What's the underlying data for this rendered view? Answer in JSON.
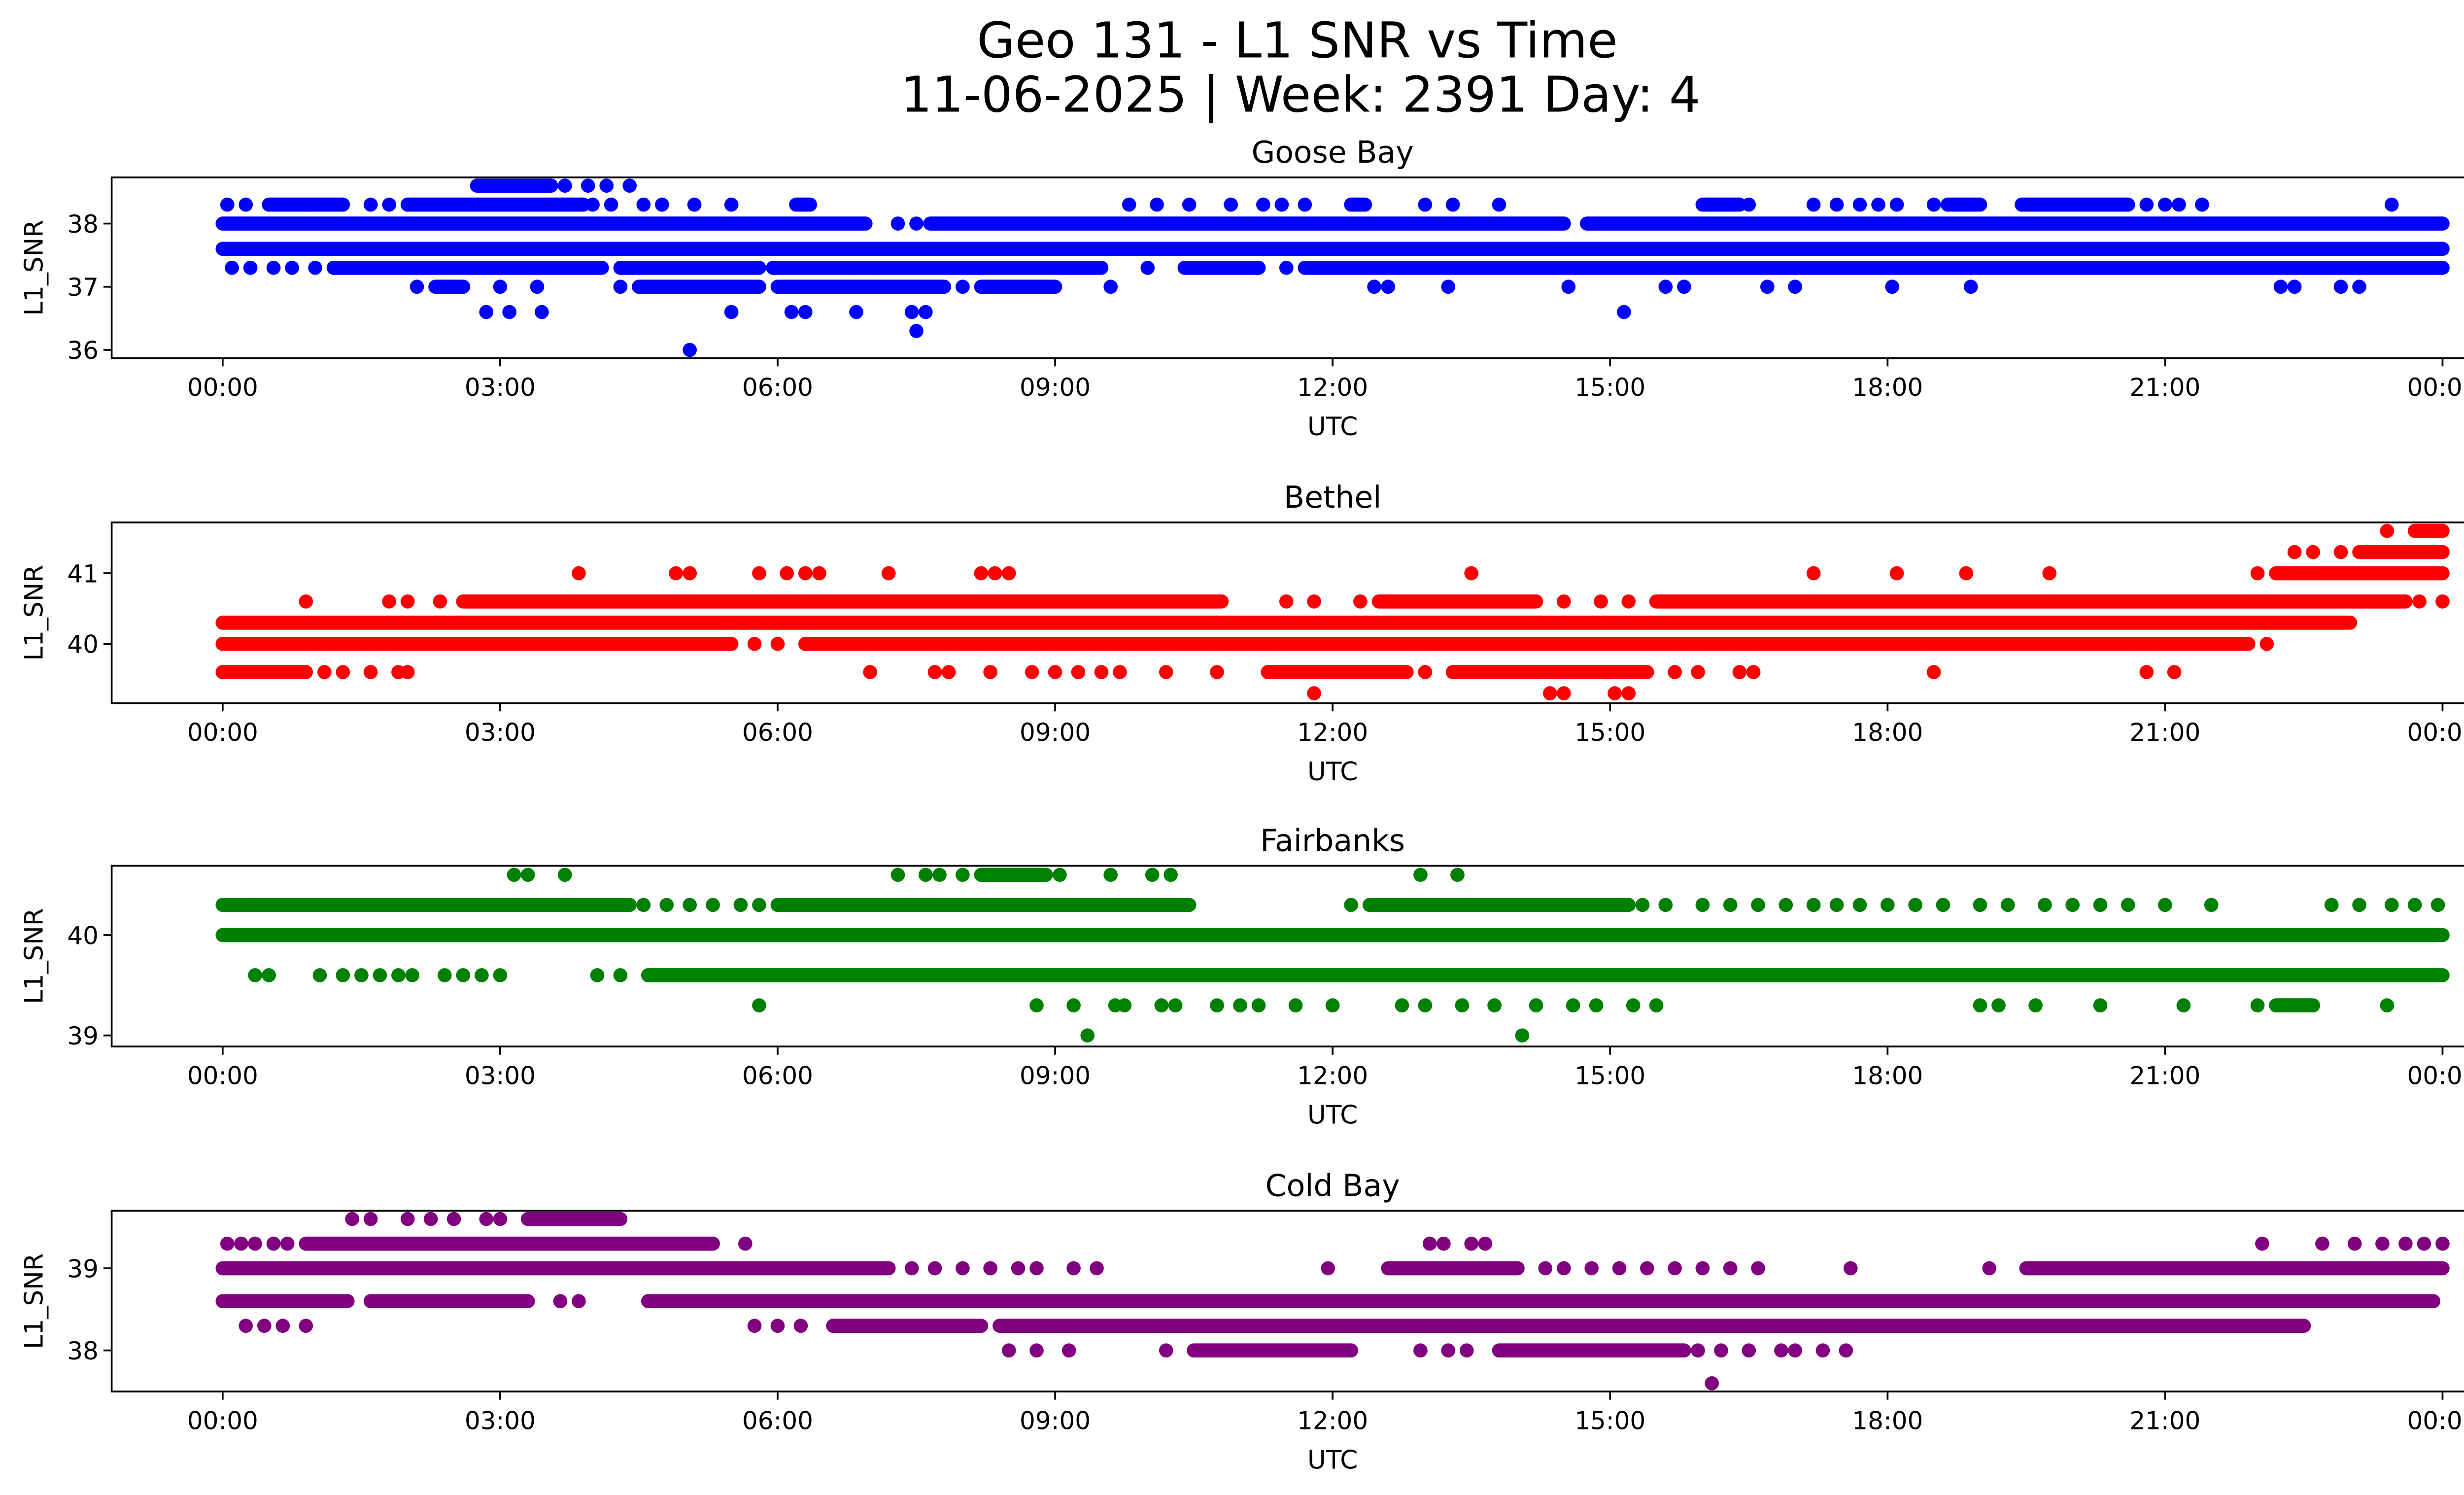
{
  "chart_data": {
    "type": "scatter",
    "title": "Geo 131 - L1 SNR vs Time",
    "subtitle": "11-06-2025 | Week: 2391 Day: 4",
    "x_unit": "hours UTC",
    "xlim": [
      -1.2,
      25.2
    ],
    "x_ticks": [
      0,
      3,
      6,
      9,
      12,
      15,
      18,
      21,
      24
    ],
    "x_tick_labels": [
      "00:00",
      "03:00",
      "06:00",
      "09:00",
      "12:00",
      "15:00",
      "18:00",
      "21:00",
      "00:00"
    ],
    "grid": false,
    "legend": "none",
    "panels": [
      {
        "name": "Goose Bay",
        "color": "#0000ff",
        "xlabel": "UTC",
        "ylabel": "L1_SNR",
        "ylim": [
          35.87,
          38.73
        ],
        "y_ticks": [
          36,
          37,
          38
        ],
        "y_tick_labels": [
          "36",
          "37",
          "38"
        ],
        "levels": [
          {
            "y": 38.6,
            "runs": [
              [
                2.75,
                3.55
              ]
            ],
            "points": [
              3.7,
              3.95,
              4.15,
              4.4
            ]
          },
          {
            "y": 38.3,
            "runs": [
              [
                0.5,
                1.3
              ],
              [
                2.0,
                3.9
              ],
              [
                6.2,
                6.35
              ],
              [
                12.2,
                12.35
              ],
              [
                16.0,
                16.4
              ],
              [
                18.65,
                19.0
              ],
              [
                19.45,
                20.6
              ]
            ],
            "points": [
              0.05,
              0.25,
              0.95,
              1.6,
              1.8,
              2.0,
              4.0,
              4.2,
              4.55,
              4.75,
              5.1,
              5.5,
              9.8,
              10.1,
              10.45,
              10.9,
              11.25,
              11.45,
              11.7,
              13.0,
              13.3,
              13.8,
              16.5,
              17.2,
              17.45,
              17.7,
              17.9,
              18.1,
              18.5,
              20.8,
              21.0,
              21.15,
              21.4,
              23.45
            ]
          },
          {
            "y": 38.0,
            "runs": [
              [
                0.0,
                6.95
              ],
              [
                7.65,
                14.5
              ],
              [
                14.75,
                24.0
              ]
            ],
            "points": [
              7.3,
              7.5
            ]
          },
          {
            "y": 37.6,
            "runs": [
              [
                0.0,
                24.0
              ]
            ],
            "points": []
          },
          {
            "y": 37.3,
            "runs": [
              [
                1.2,
                4.1
              ],
              [
                4.3,
                5.8
              ],
              [
                5.95,
                9.5
              ],
              [
                10.4,
                11.2
              ],
              [
                11.7,
                24.0
              ]
            ],
            "points": [
              0.1,
              0.3,
              0.55,
              0.75,
              1.0,
              10.0,
              11.5
            ]
          },
          {
            "y": 37.0,
            "runs": [
              [
                2.3,
                2.6
              ],
              [
                4.5,
                5.8
              ],
              [
                6.0,
                7.8
              ],
              [
                8.2,
                9.0
              ]
            ],
            "points": [
              2.1,
              3.0,
              3.4,
              4.3,
              6.2,
              6.45,
              6.8,
              7.1,
              7.3,
              8.0,
              9.6,
              12.45,
              12.6,
              13.25,
              14.55,
              15.6,
              15.8,
              16.7,
              17.0,
              18.05,
              18.9,
              22.25,
              22.4,
              22.9,
              23.1
            ]
          },
          {
            "y": 36.6,
            "runs": [],
            "points": [
              2.85,
              3.1,
              3.45,
              5.5,
              6.15,
              6.3,
              6.85,
              7.45,
              7.6,
              15.15
            ]
          },
          {
            "y": 36.3,
            "runs": [],
            "points": [
              7.5
            ]
          },
          {
            "y": 36.0,
            "runs": [],
            "points": [
              5.05
            ]
          }
        ]
      },
      {
        "name": "Bethel",
        "color": "#ff0000",
        "xlabel": "UTC",
        "ylabel": "L1_SNR",
        "ylim": [
          39.16,
          41.72
        ],
        "y_ticks": [
          40,
          41
        ],
        "y_tick_labels": [
          "40",
          "41"
        ],
        "levels": [
          {
            "y": 41.6,
            "runs": [
              [
                23.7,
                24.0
              ]
            ],
            "points": [
              23.4
            ]
          },
          {
            "y": 41.3,
            "runs": [
              [
                23.1,
                24.0
              ]
            ],
            "points": [
              22.4,
              22.6,
              22.9
            ]
          },
          {
            "y": 41.0,
            "runs": [
              [
                22.2,
                24.0
              ]
            ],
            "points": [
              3.85,
              4.9,
              5.05,
              5.8,
              6.1,
              6.3,
              6.45,
              7.2,
              8.2,
              8.35,
              8.5,
              13.5,
              17.2,
              18.1,
              18.85,
              19.75,
              22.0
            ]
          },
          {
            "y": 40.6,
            "runs": [
              [
                2.6,
                10.8
              ],
              [
                12.5,
                14.2
              ],
              [
                15.5,
                23.6
              ]
            ],
            "points": [
              0.9,
              1.8,
              2.0,
              2.35,
              11.5,
              11.8,
              12.3,
              14.5,
              14.9,
              15.2,
              23.75,
              24.0
            ]
          },
          {
            "y": 40.3,
            "runs": [
              [
                0.0,
                23.0
              ]
            ],
            "points": []
          },
          {
            "y": 40.0,
            "runs": [
              [
                0.0,
                5.5
              ],
              [
                6.3,
                21.9
              ]
            ],
            "points": [
              5.75,
              6.0,
              22.1
            ]
          },
          {
            "y": 39.6,
            "runs": [
              [
                0.0,
                0.9
              ],
              [
                11.3,
                12.8
              ],
              [
                13.3,
                15.4
              ]
            ],
            "points": [
              1.1,
              1.3,
              1.6,
              1.9,
              2.0,
              7.0,
              7.7,
              7.85,
              8.3,
              8.75,
              9.0,
              9.25,
              9.5,
              9.7,
              10.2,
              10.75,
              13.0,
              15.7,
              15.95,
              16.4,
              16.55,
              18.5,
              20.8,
              21.1
            ]
          },
          {
            "y": 39.3,
            "runs": [],
            "points": [
              11.8,
              14.35,
              14.5,
              15.05,
              15.2
            ]
          }
        ]
      },
      {
        "name": "Fairbanks",
        "color": "#008000",
        "xlabel": "UTC",
        "ylabel": "L1_SNR",
        "ylim": [
          38.89,
          40.69
        ],
        "y_ticks": [
          39,
          40
        ],
        "y_tick_labels": [
          "39",
          "40"
        ],
        "levels": [
          {
            "y": 40.6,
            "runs": [
              [
                8.2,
                8.9
              ]
            ],
            "points": [
              3.15,
              3.3,
              3.7,
              7.3,
              7.6,
              7.75,
              8.0,
              9.05,
              9.6,
              10.05,
              10.25,
              12.95,
              13.35
            ]
          },
          {
            "y": 40.3,
            "runs": [
              [
                0.0,
                4.4
              ],
              [
                6.0,
                10.45
              ],
              [
                12.4,
                15.2
              ]
            ],
            "points": [
              4.55,
              4.8,
              5.05,
              5.3,
              5.6,
              5.8,
              12.2,
              15.35,
              15.6,
              16.0,
              16.3,
              16.6,
              16.9,
              17.2,
              17.45,
              17.7,
              18.0,
              18.3,
              18.6,
              19.0,
              19.3,
              19.7,
              20.0,
              20.3,
              20.6,
              21.0,
              21.5,
              22.8,
              23.1,
              23.45,
              23.7,
              23.95
            ]
          },
          {
            "y": 40.0,
            "runs": [
              [
                0.0,
                24.0
              ]
            ],
            "points": []
          },
          {
            "y": 39.6,
            "runs": [
              [
                4.6,
                24.0
              ]
            ],
            "points": [
              0.35,
              0.5,
              1.05,
              1.3,
              1.5,
              1.7,
              1.9,
              2.05,
              2.4,
              2.6,
              2.8,
              3.0,
              4.05,
              4.3
            ]
          },
          {
            "y": 39.3,
            "runs": [
              [
                22.2,
                22.6
              ]
            ],
            "points": [
              5.8,
              8.8,
              9.2,
              9.65,
              9.75,
              10.15,
              10.3,
              10.75,
              11.0,
              11.2,
              11.6,
              12.0,
              12.75,
              13.0,
              13.4,
              13.75,
              14.2,
              14.6,
              14.85,
              15.25,
              15.5,
              19.0,
              19.2,
              19.6,
              20.3,
              21.2,
              22.0,
              23.4
            ]
          },
          {
            "y": 39.0,
            "runs": [],
            "points": [
              9.35,
              14.05
            ]
          }
        ]
      },
      {
        "name": "Cold Bay",
        "color": "#800080",
        "xlabel": "UTC",
        "ylabel": "L1_SNR",
        "ylim": [
          37.5,
          39.7
        ],
        "y_ticks": [
          38,
          39
        ],
        "y_tick_labels": [
          "38",
          "39"
        ],
        "levels": [
          {
            "y": 39.6,
            "runs": [
              [
                3.3,
                4.3
              ]
            ],
            "points": [
              1.4,
              1.6,
              2.0,
              2.25,
              2.5,
              2.85,
              3.0
            ]
          },
          {
            "y": 39.3,
            "runs": [
              [
                0.9,
                5.3
              ]
            ],
            "points": [
              0.05,
              0.2,
              0.35,
              0.55,
              0.7,
              5.65,
              13.05,
              13.2,
              13.5,
              13.65,
              22.05,
              22.7,
              23.05,
              23.35,
              23.6,
              23.8,
              24.0
            ]
          },
          {
            "y": 39.0,
            "runs": [
              [
                0.0,
                7.2
              ],
              [
                12.6,
                14.0
              ],
              [
                19.5,
                24.0
              ]
            ],
            "points": [
              7.45,
              7.7,
              8.0,
              8.3,
              8.6,
              8.8,
              9.2,
              9.45,
              11.95,
              14.3,
              14.5,
              14.8,
              15.1,
              15.4,
              15.7,
              16.0,
              16.3,
              16.6,
              17.6,
              19.1
            ]
          },
          {
            "y": 38.6,
            "runs": [
              [
                0.0,
                1.35
              ],
              [
                1.6,
                3.3
              ],
              [
                4.6,
                23.9
              ]
            ],
            "points": [
              3.65,
              3.85
            ]
          },
          {
            "y": 38.3,
            "runs": [
              [
                6.6,
                8.2
              ],
              [
                8.4,
                22.5
              ]
            ],
            "points": [
              0.25,
              0.45,
              0.65,
              0.9,
              5.75,
              6.0,
              6.25
            ]
          },
          {
            "y": 38.0,
            "runs": [
              [
                10.5,
                12.2
              ],
              [
                13.8,
                15.8
              ]
            ],
            "points": [
              8.5,
              8.8,
              9.15,
              10.2,
              12.95,
              13.25,
              13.45,
              15.95,
              16.2,
              16.5,
              16.85,
              17.0,
              17.3,
              17.55
            ]
          },
          {
            "y": 37.6,
            "runs": [],
            "points": [
              16.1
            ]
          }
        ]
      }
    ]
  }
}
